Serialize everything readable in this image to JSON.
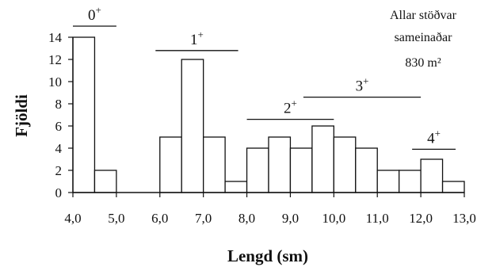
{
  "chart_data": {
    "type": "bar",
    "title": "",
    "xlabel": "Lengd (sm)",
    "ylabel": "Fjöldi",
    "note": {
      "line1": "Allar stöðvar",
      "line2": "sameinaðar",
      "line3": "830 m²"
    },
    "xlim": [
      4.0,
      13.0
    ],
    "ylim": [
      0,
      14
    ],
    "x_ticks": [
      4.0,
      5.0,
      6.0,
      7.0,
      8.0,
      9.0,
      10.0,
      11.0,
      12.0,
      13.0
    ],
    "x_tick_labels": [
      "4,0",
      "5,0",
      "6,0",
      "7,0",
      "8,0",
      "9,0",
      "10,0",
      "11,0",
      "12,0",
      "13,0"
    ],
    "y_ticks": [
      0,
      2,
      4,
      6,
      8,
      10,
      12,
      14
    ],
    "y_tick_labels": [
      "0",
      "2",
      "4",
      "6",
      "8",
      "10",
      "12",
      "14"
    ],
    "bin_width": 0.5,
    "bins": [
      {
        "start": 4.0,
        "value": 14
      },
      {
        "start": 4.5,
        "value": 2
      },
      {
        "start": 6.0,
        "value": 5
      },
      {
        "start": 6.5,
        "value": 12
      },
      {
        "start": 7.0,
        "value": 5
      },
      {
        "start": 7.5,
        "value": 1
      },
      {
        "start": 8.0,
        "value": 4
      },
      {
        "start": 8.5,
        "value": 5
      },
      {
        "start": 9.0,
        "value": 4
      },
      {
        "start": 9.5,
        "value": 6
      },
      {
        "start": 10.0,
        "value": 5
      },
      {
        "start": 10.5,
        "value": 4
      },
      {
        "start": 11.0,
        "value": 2
      },
      {
        "start": 11.5,
        "value": 2
      },
      {
        "start": 12.0,
        "value": 3
      },
      {
        "start": 12.5,
        "value": 1
      }
    ],
    "age_groups": [
      {
        "label": "0",
        "sup": "+",
        "x_start": 4.0,
        "x_end": 5.0,
        "y": 15.0
      },
      {
        "label": "1",
        "sup": "+",
        "x_start": 5.9,
        "x_end": 7.8,
        "y": 12.8
      },
      {
        "label": "2",
        "sup": "+",
        "x_start": 8.0,
        "x_end": 10.0,
        "y": 6.6
      },
      {
        "label": "3",
        "sup": "+",
        "x_start": 9.3,
        "x_end": 12.0,
        "y": 8.6
      },
      {
        "label": "4",
        "sup": "+",
        "x_start": 11.8,
        "x_end": 12.8,
        "y": 3.9
      }
    ]
  }
}
